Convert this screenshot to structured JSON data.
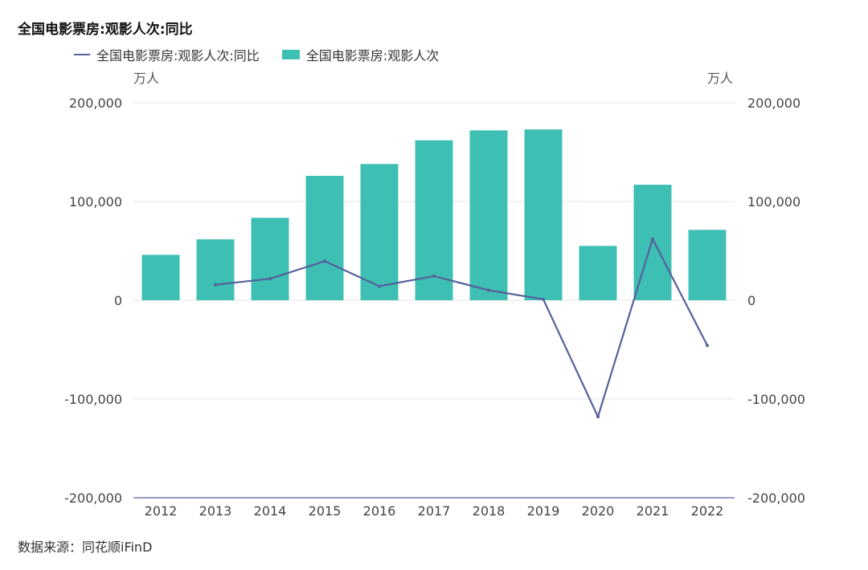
{
  "title": "全国电影票房:观影人次:同比",
  "legend": {
    "line_label": "全国电影票房:观影人次:同比",
    "bar_label": "全国电影票房:观影人次"
  },
  "units": {
    "left": "万人",
    "right": "万人"
  },
  "source": "数据来源：同花顺iFinD",
  "colors": {
    "bar": "#3dbfb4",
    "line": "#56609a",
    "grid": "#e6e6e6",
    "axis": "#56609a"
  },
  "chart_data": {
    "type": "bar",
    "categories": [
      "2012",
      "2013",
      "2014",
      "2015",
      "2016",
      "2017",
      "2018",
      "2019",
      "2020",
      "2021",
      "2022"
    ],
    "series": [
      {
        "name": "全国电影票房:观影人次",
        "type": "bar",
        "axis": "left",
        "values": [
          46000,
          61700,
          83500,
          126000,
          138000,
          162000,
          172000,
          173000,
          55000,
          117000,
          71300
        ]
      },
      {
        "name": "全国电影票房:观影人次:同比",
        "type": "line",
        "axis": "right",
        "values": [
          null,
          15700,
          21800,
          39600,
          14200,
          24500,
          10200,
          1000,
          -118000,
          62000,
          -45700
        ]
      }
    ],
    "ylim": [
      -200000,
      200000
    ],
    "y_ticks": [
      "200,000",
      "100,000",
      "0",
      "-100,000",
      "-200,000"
    ],
    "grid": true,
    "legend_position": "top-left"
  }
}
